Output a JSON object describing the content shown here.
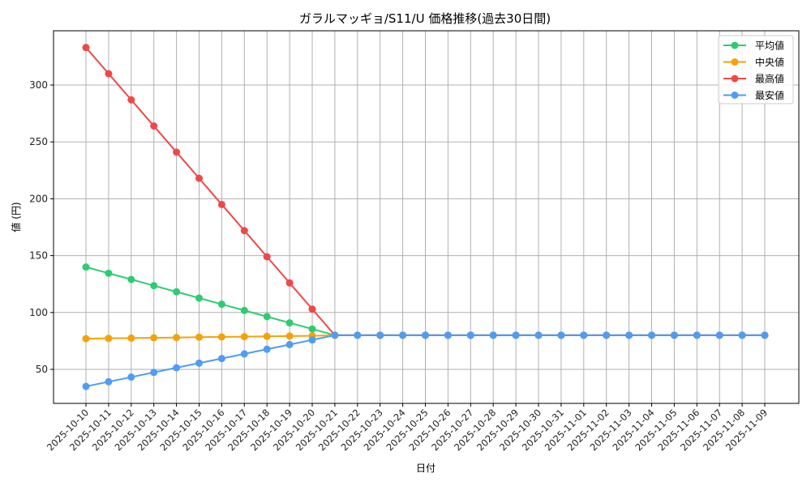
{
  "chart_data": {
    "type": "line",
    "title": "ガラルマッギョ/S11/U 価格推移(過去30日間)",
    "xlabel": "日付",
    "ylabel": "値 (円)",
    "ylim": [
      20,
      345
    ],
    "yticks": [
      50,
      100,
      150,
      200,
      250,
      300
    ],
    "grid": true,
    "legend_position": "upper right",
    "x": [
      "2025-10-10",
      "2025-10-11",
      "2025-10-12",
      "2025-10-13",
      "2025-10-14",
      "2025-10-15",
      "2025-10-16",
      "2025-10-17",
      "2025-10-18",
      "2025-10-19",
      "2025-10-20",
      "2025-10-21",
      "2025-10-22",
      "2025-10-23",
      "2025-10-24",
      "2025-10-25",
      "2025-10-26",
      "2025-10-27",
      "2025-10-28",
      "2025-10-29",
      "2025-10-30",
      "2025-10-31",
      "2025-11-01",
      "2025-11-02",
      "2025-11-03",
      "2025-11-04",
      "2025-11-05",
      "2025-11-06",
      "2025-11-07",
      "2025-11-08",
      "2025-11-09"
    ],
    "series": [
      {
        "name": "平均値",
        "color": "#2ecc71",
        "values": [
          140,
          134.5,
          129.1,
          123.6,
          118.2,
          112.7,
          107.3,
          101.8,
          96.4,
          90.9,
          85.5,
          80,
          80,
          80,
          80,
          80,
          80,
          80,
          80,
          80,
          80,
          80,
          80,
          80,
          80,
          80,
          80,
          80,
          80,
          80,
          80
        ]
      },
      {
        "name": "中央値",
        "color": "#f5a20a",
        "values": [
          77,
          77.3,
          77.5,
          77.8,
          78,
          78.3,
          78.5,
          78.8,
          79,
          79.3,
          79.5,
          80,
          80,
          80,
          80,
          80,
          80,
          80,
          80,
          80,
          80,
          80,
          80,
          80,
          80,
          80,
          80,
          80,
          80,
          80,
          80
        ]
      },
      {
        "name": "最高値",
        "color": "#f04848",
        "values": [
          333,
          310,
          287,
          264,
          241,
          218,
          195,
          172,
          149,
          126,
          103,
          80,
          80,
          80,
          80,
          80,
          80,
          80,
          80,
          80,
          80,
          80,
          80,
          80,
          80,
          80,
          80,
          80,
          80,
          80,
          80
        ]
      },
      {
        "name": "最安値",
        "color": "#4f9cf5",
        "values": [
          35,
          39.1,
          43.2,
          47.3,
          51.4,
          55.5,
          59.5,
          63.6,
          67.7,
          71.8,
          75.9,
          80,
          80,
          80,
          80,
          80,
          80,
          80,
          80,
          80,
          80,
          80,
          80,
          80,
          80,
          80,
          80,
          80,
          80,
          80,
          80
        ]
      }
    ]
  }
}
